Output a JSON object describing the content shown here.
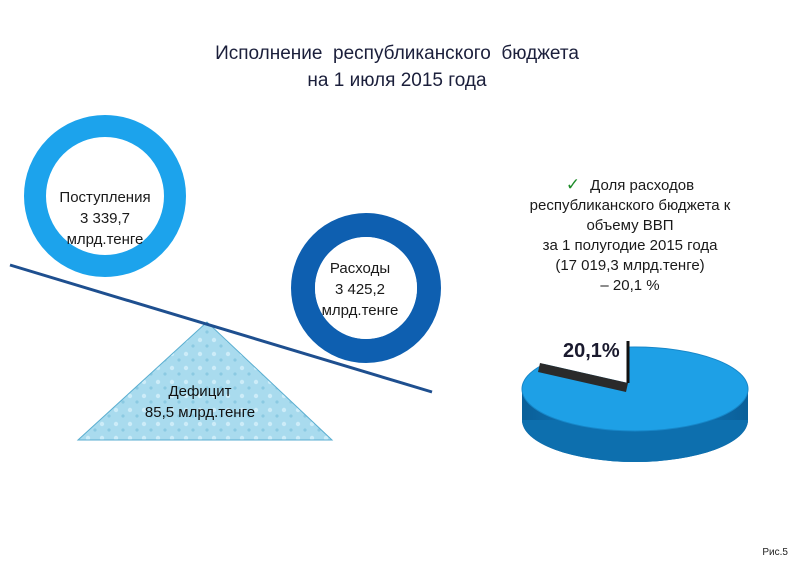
{
  "title": {
    "line1": "Исполнение  республиканского  бюджета",
    "line2": "на 1 июля 2015 года"
  },
  "revenue": {
    "line1": "Поступления",
    "line2": "3 339,7",
    "line3": "млрд.тенге"
  },
  "expenses": {
    "line1": "Расходы",
    "line2": "3 425,2",
    "line3": "млрд.тенге"
  },
  "deficit": {
    "line1": "Дефицит",
    "line2": "85,5 млрд.тенге"
  },
  "share": {
    "check_icon": "check-icon",
    "line1": "Доля расходов",
    "line2": "республиканского бюджета к",
    "line3": "объему ВВП",
    "line4": "за 1 полугодие 2015 года",
    "line5": "(17 019,3 млрд.тенге)",
    "line6": "– 20,1 %"
  },
  "pie": {
    "label": "20,1%",
    "value_percent": 20.1,
    "colors": {
      "main": "#1ea0e6",
      "slice": "#ffffff",
      "side": "#0d6fae"
    }
  },
  "colors": {
    "revenue_ring": "#1ca3ec",
    "expense_ring": "#0e5fb0",
    "beam": "#1e4f8f",
    "triangle": "#9cd3e8"
  },
  "figure_label": "Рис.5"
}
